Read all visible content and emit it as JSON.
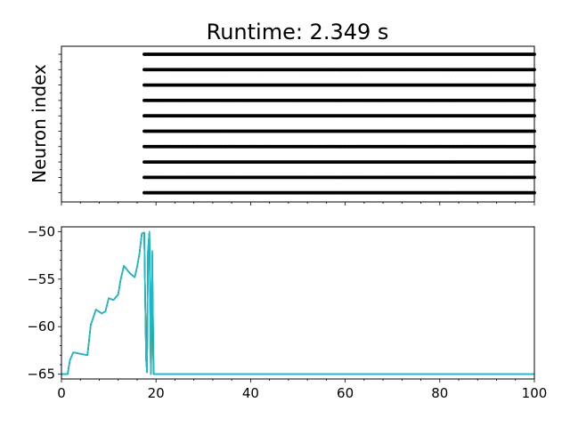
{
  "chart_data": [
    {
      "type": "scatter",
      "title": "Runtime: 2.349 s",
      "ylabel": "Neuron index",
      "xlabel": "",
      "xlim": [
        0,
        100
      ],
      "neurons": 10,
      "first_spike_time": 17.5,
      "spike_interval": 0.25,
      "spike_color": "#000000",
      "show_x_tick_labels": false,
      "show_y_tick_labels": false
    },
    {
      "type": "line",
      "title": "",
      "xlabel": "",
      "ylabel": "",
      "xlim": [
        0,
        100
      ],
      "ylim": [
        -65.5,
        -49.5
      ],
      "x_ticks": [
        0,
        20,
        40,
        60,
        80,
        100
      ],
      "y_ticks": [
        -65,
        -60,
        -55,
        -50
      ],
      "x": [
        0,
        1.3,
        1.8,
        2.5,
        4.5,
        5.5,
        6.2,
        7.3,
        8.5,
        9.3,
        10,
        11,
        12,
        12.5,
        13.2,
        14.5,
        15.5,
        16,
        16.5,
        17,
        17.5,
        17.9,
        18.1,
        18.3,
        18.6,
        18.9,
        19.2,
        19.5,
        20,
        40,
        60,
        80,
        100
      ],
      "series": [
        {
          "color": "#17becf",
          "values": [
            -65,
            -65,
            -63.5,
            -62.7,
            -62.9,
            -63,
            -59.8,
            -58.2,
            -58.6,
            -58.4,
            -57,
            -57.2,
            -56.6,
            -55.1,
            -53.6,
            -54.4,
            -54.8,
            -53.7,
            -52.3,
            -50.2,
            -50.1,
            -63.5,
            -64.8,
            -52,
            -50,
            -65,
            -52.5,
            -65,
            -65,
            -65,
            -65,
            -65,
            -65
          ]
        },
        {
          "color": "#bcbd22",
          "values": [
            -65,
            -65,
            -63.5,
            -62.7,
            -62.9,
            -63,
            -59.8,
            -58.2,
            -58.6,
            -58.4,
            -57,
            -57.2,
            -56.6,
            -55.1,
            -53.6,
            -54.4,
            -54.8,
            -53.7,
            -52.3,
            -50.2,
            -50.1,
            -63.5,
            -64.8,
            -52,
            -50.2,
            -65,
            -53,
            -65,
            -65,
            -65,
            -65,
            -65,
            -65
          ]
        },
        {
          "color": "#e377c2",
          "values": [
            -65,
            -65,
            -63.5,
            -62.7,
            -62.9,
            -63,
            -59.8,
            -58.2,
            -58.6,
            -58.4,
            -57,
            -57.2,
            -56.6,
            -55.1,
            -53.6,
            -54.4,
            -54.8,
            -53.7,
            -52.3,
            -50.2,
            -50.1,
            -63.5,
            -64.8,
            -52,
            -50.4,
            -65,
            -56.5,
            -65,
            -65,
            -65,
            -65,
            -65,
            -65
          ]
        },
        {
          "color": "#ff7f0e",
          "values": [
            -65,
            -65,
            -63.5,
            -62.7,
            -62.9,
            -63,
            -59.8,
            -58.2,
            -58.6,
            -58.4,
            -57,
            -57.2,
            -56.6,
            -55.1,
            -53.6,
            -54.4,
            -54.8,
            -53.7,
            -52.3,
            -50.2,
            -50.1,
            -63.5,
            -64.8,
            -52,
            -51,
            -65,
            -60.5,
            -65,
            -65,
            -65,
            -65,
            -65,
            -65
          ]
        },
        {
          "color": "#2ca02c",
          "values": [
            -65,
            -65,
            -63.5,
            -62.7,
            -62.9,
            -63,
            -59.8,
            -58.2,
            -58.6,
            -58.4,
            -57,
            -57.2,
            -56.6,
            -55.1,
            -53.6,
            -54.4,
            -54.8,
            -53.7,
            -52.3,
            -50.2,
            -50.1,
            -63.5,
            -64.8,
            -52,
            -50.1,
            -65,
            -58,
            -65,
            -65,
            -65,
            -65,
            -65,
            -65
          ]
        },
        {
          "color": "#1f77b4",
          "values": [
            -65,
            -65,
            -63.5,
            -62.7,
            -62.9,
            -63,
            -59.8,
            -58.2,
            -58.6,
            -58.4,
            -57,
            -57.2,
            -56.6,
            -55.1,
            -53.6,
            -54.4,
            -54.8,
            -53.7,
            -52.3,
            -50.2,
            -50.1,
            -63.5,
            -64.8,
            -52,
            -50,
            -65,
            -52.2,
            -65,
            -65,
            -65,
            -65,
            -65,
            -65
          ]
        },
        {
          "color": "#17becf",
          "values": [
            -65,
            -65,
            -63.5,
            -62.7,
            -62.9,
            -63,
            -59.8,
            -58.2,
            -58.6,
            -58.4,
            -57,
            -57.2,
            -56.6,
            -55.1,
            -53.6,
            -54.4,
            -54.8,
            -53.7,
            -52.3,
            -50.2,
            -50.1,
            -63.5,
            -64.8,
            -52,
            -50,
            -65,
            -52,
            -65,
            -65,
            -65,
            -65,
            -65,
            -65
          ]
        }
      ]
    }
  ]
}
